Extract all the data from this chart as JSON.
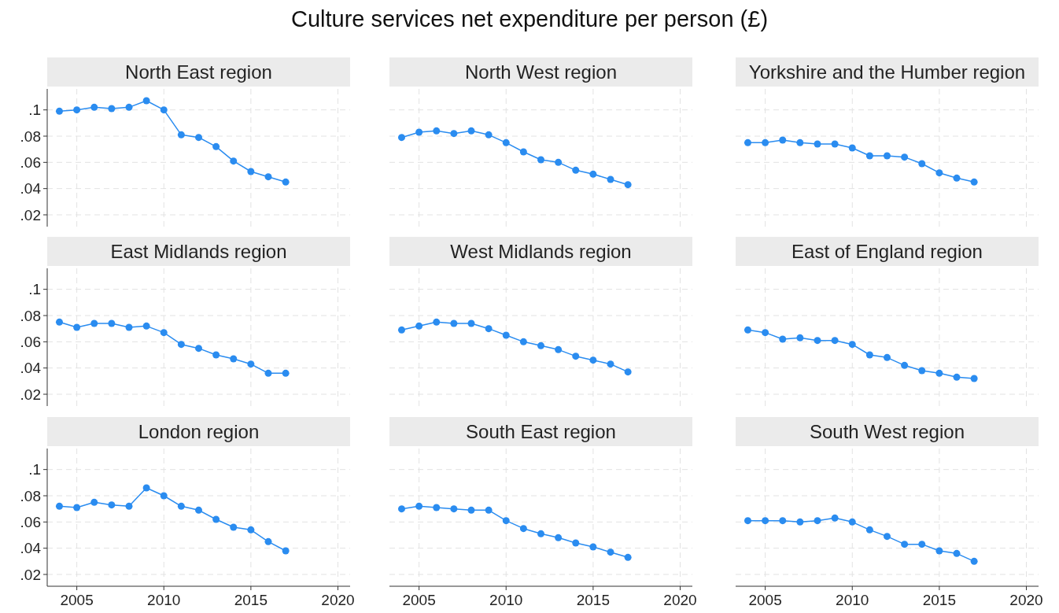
{
  "chart_data": [
    {
      "type": "line",
      "title": "North East region",
      "annotations": [
        "Culture services net expenditure per person (£)"
      ],
      "x": [
        2004,
        2005,
        2006,
        2007,
        2008,
        2009,
        2010,
        2011,
        2012,
        2013,
        2014,
        2015,
        2016,
        2017
      ],
      "values": [
        0.099,
        0.1,
        0.102,
        0.101,
        0.102,
        0.107,
        0.1,
        0.081,
        0.079,
        0.072,
        0.061,
        0.053,
        0.049,
        0.045
      ],
      "color": "#2a8cf0",
      "marker": "circle",
      "grid": true,
      "xlim": [
        2003.3,
        2020.7
      ],
      "ylim": [
        0.011,
        0.116
      ],
      "xticks": [
        {
          "value": 2005,
          "label": null
        },
        {
          "value": 2010,
          "label": null
        },
        {
          "value": 2015,
          "label": null
        },
        {
          "value": 2020,
          "label": null
        }
      ],
      "yticks": [
        {
          "value": 0.02,
          "label": ".02"
        },
        {
          "value": 0.04,
          "label": ".04"
        },
        {
          "value": 0.06,
          "label": ".06"
        },
        {
          "value": 0.08,
          "label": ".08"
        },
        {
          "value": 0.1,
          "label": ".1"
        }
      ],
      "tick_labels": "y"
    },
    {
      "type": "line",
      "title": "North West region",
      "x": [
        2004,
        2005,
        2006,
        2007,
        2008,
        2009,
        2010,
        2011,
        2012,
        2013,
        2014,
        2015,
        2016,
        2017
      ],
      "values": [
        0.079,
        0.083,
        0.084,
        0.082,
        0.084,
        0.081,
        0.075,
        0.068,
        0.062,
        0.06,
        0.054,
        0.051,
        0.047,
        0.043
      ],
      "color": "#2a8cf0",
      "marker": "circle",
      "grid": true,
      "xlim": [
        2003.3,
        2020.7
      ],
      "ylim": [
        0.011,
        0.116
      ],
      "xticks": [
        {
          "value": 2005,
          "label": null
        },
        {
          "value": 2010,
          "label": null
        },
        {
          "value": 2015,
          "label": null
        },
        {
          "value": 2020,
          "label": null
        }
      ],
      "yticks": [
        {
          "value": 0.02,
          "label": null
        },
        {
          "value": 0.04,
          "label": null
        },
        {
          "value": 0.06,
          "label": null
        },
        {
          "value": 0.08,
          "label": null
        },
        {
          "value": 0.1,
          "label": null
        }
      ],
      "tick_labels": false
    },
    {
      "type": "line",
      "title": "Yorkshire and the Humber region",
      "x": [
        2004,
        2005,
        2006,
        2007,
        2008,
        2009,
        2010,
        2011,
        2012,
        2013,
        2014,
        2015,
        2016,
        2017
      ],
      "values": [
        0.075,
        0.075,
        0.077,
        0.075,
        0.074,
        0.074,
        0.071,
        0.065,
        0.065,
        0.064,
        0.059,
        0.052,
        0.048,
        0.045
      ],
      "color": "#2a8cf0",
      "marker": "circle",
      "grid": true,
      "xlim": [
        2003.3,
        2020.7
      ],
      "ylim": [
        0.011,
        0.116
      ],
      "xticks": [
        {
          "value": 2005,
          "label": null
        },
        {
          "value": 2010,
          "label": null
        },
        {
          "value": 2015,
          "label": null
        },
        {
          "value": 2020,
          "label": null
        }
      ],
      "yticks": [
        {
          "value": 0.02,
          "label": null
        },
        {
          "value": 0.04,
          "label": null
        },
        {
          "value": 0.06,
          "label": null
        },
        {
          "value": 0.08,
          "label": null
        },
        {
          "value": 0.1,
          "label": null
        }
      ],
      "tick_labels": false
    },
    {
      "type": "line",
      "title": "East Midlands region",
      "x": [
        2004,
        2005,
        2006,
        2007,
        2008,
        2009,
        2010,
        2011,
        2012,
        2013,
        2014,
        2015,
        2016,
        2017
      ],
      "values": [
        0.075,
        0.071,
        0.074,
        0.074,
        0.071,
        0.072,
        0.067,
        0.058,
        0.055,
        0.05,
        0.047,
        0.043,
        0.036,
        0.036
      ],
      "color": "#2a8cf0",
      "marker": "circle",
      "grid": true,
      "xlim": [
        2003.3,
        2020.7
      ],
      "ylim": [
        0.011,
        0.116
      ],
      "xticks": [
        {
          "value": 2005,
          "label": null
        },
        {
          "value": 2010,
          "label": null
        },
        {
          "value": 2015,
          "label": null
        },
        {
          "value": 2020,
          "label": null
        }
      ],
      "yticks": [
        {
          "value": 0.02,
          "label": ".02"
        },
        {
          "value": 0.04,
          "label": ".04"
        },
        {
          "value": 0.06,
          "label": ".06"
        },
        {
          "value": 0.08,
          "label": ".08"
        },
        {
          "value": 0.1,
          "label": ".1"
        }
      ],
      "tick_labels": "y"
    },
    {
      "type": "line",
      "title": "West Midlands region",
      "x": [
        2004,
        2005,
        2006,
        2007,
        2008,
        2009,
        2010,
        2011,
        2012,
        2013,
        2014,
        2015,
        2016,
        2017
      ],
      "values": [
        0.069,
        0.072,
        0.075,
        0.074,
        0.074,
        0.07,
        0.065,
        0.06,
        0.057,
        0.054,
        0.049,
        0.046,
        0.043,
        0.037
      ],
      "color": "#2a8cf0",
      "marker": "circle",
      "grid": true,
      "xlim": [
        2003.3,
        2020.7
      ],
      "ylim": [
        0.011,
        0.116
      ],
      "xticks": [
        {
          "value": 2005,
          "label": null
        },
        {
          "value": 2010,
          "label": null
        },
        {
          "value": 2015,
          "label": null
        },
        {
          "value": 2020,
          "label": null
        }
      ],
      "yticks": [
        {
          "value": 0.02,
          "label": null
        },
        {
          "value": 0.04,
          "label": null
        },
        {
          "value": 0.06,
          "label": null
        },
        {
          "value": 0.08,
          "label": null
        },
        {
          "value": 0.1,
          "label": null
        }
      ],
      "tick_labels": false
    },
    {
      "type": "line",
      "title": "East of England region",
      "x": [
        2004,
        2005,
        2006,
        2007,
        2008,
        2009,
        2010,
        2011,
        2012,
        2013,
        2014,
        2015,
        2016,
        2017
      ],
      "values": [
        0.069,
        0.067,
        0.062,
        0.063,
        0.061,
        0.061,
        0.058,
        0.05,
        0.048,
        0.042,
        0.038,
        0.036,
        0.033,
        0.032
      ],
      "color": "#2a8cf0",
      "marker": "circle",
      "grid": true,
      "xlim": [
        2003.3,
        2020.7
      ],
      "ylim": [
        0.011,
        0.116
      ],
      "xticks": [
        {
          "value": 2005,
          "label": null
        },
        {
          "value": 2010,
          "label": null
        },
        {
          "value": 2015,
          "label": null
        },
        {
          "value": 2020,
          "label": null
        }
      ],
      "yticks": [
        {
          "value": 0.02,
          "label": null
        },
        {
          "value": 0.04,
          "label": null
        },
        {
          "value": 0.06,
          "label": null
        },
        {
          "value": 0.08,
          "label": null
        },
        {
          "value": 0.1,
          "label": null
        }
      ],
      "tick_labels": false
    },
    {
      "type": "line",
      "title": "London region",
      "x": [
        2004,
        2005,
        2006,
        2007,
        2008,
        2009,
        2010,
        2011,
        2012,
        2013,
        2014,
        2015,
        2016,
        2017
      ],
      "values": [
        0.072,
        0.071,
        0.075,
        0.073,
        0.072,
        0.086,
        0.08,
        0.072,
        0.069,
        0.062,
        0.056,
        0.054,
        0.045,
        0.038
      ],
      "color": "#2a8cf0",
      "marker": "circle",
      "grid": true,
      "xlim": [
        2003.3,
        2020.7
      ],
      "ylim": [
        0.011,
        0.116
      ],
      "xticks": [
        2005,
        2010,
        2015,
        2020
      ],
      "yticks": [
        {
          "value": 0.02,
          "label": ".02"
        },
        {
          "value": 0.04,
          "label": ".04"
        },
        {
          "value": 0.06,
          "label": ".06"
        },
        {
          "value": 0.08,
          "label": ".08"
        },
        {
          "value": 0.1,
          "label": ".1"
        }
      ]
    },
    {
      "type": "line",
      "title": "South East region",
      "x": [
        2004,
        2005,
        2006,
        2007,
        2008,
        2009,
        2010,
        2011,
        2012,
        2013,
        2014,
        2015,
        2016,
        2017
      ],
      "values": [
        0.07,
        0.072,
        0.071,
        0.07,
        0.069,
        0.069,
        0.061,
        0.055,
        0.051,
        0.048,
        0.044,
        0.041,
        0.037,
        0.033
      ],
      "color": "#2a8cf0",
      "marker": "circle",
      "grid": true,
      "xlim": [
        2003.3,
        2020.7
      ],
      "ylim": [
        0.011,
        0.116
      ],
      "xticks": [
        2005,
        2010,
        2015,
        2020
      ],
      "yticks": [
        {
          "value": 0.02,
          "label": null
        },
        {
          "value": 0.04,
          "label": null
        },
        {
          "value": 0.06,
          "label": null
        },
        {
          "value": 0.08,
          "label": null
        },
        {
          "value": 0.1,
          "label": null
        }
      ],
      "tick_labels": "x"
    },
    {
      "type": "line",
      "title": "South West region",
      "x": [
        2004,
        2005,
        2006,
        2007,
        2008,
        2009,
        2010,
        2011,
        2012,
        2013,
        2014,
        2015,
        2016,
        2017
      ],
      "values": [
        0.061,
        0.061,
        0.061,
        0.06,
        0.061,
        0.063,
        0.06,
        0.054,
        0.049,
        0.043,
        0.043,
        0.038,
        0.036,
        0.03
      ],
      "color": "#2a8cf0",
      "marker": "circle",
      "grid": true,
      "xlim": [
        2003.3,
        2020.7
      ],
      "ylim": [
        0.011,
        0.116
      ],
      "xticks": [
        2005,
        2010,
        2015,
        2020
      ],
      "yticks": [
        {
          "value": 0.02,
          "label": null
        },
        {
          "value": 0.04,
          "label": null
        },
        {
          "value": 0.06,
          "label": null
        },
        {
          "value": 0.08,
          "label": null
        },
        {
          "value": 0.1,
          "label": null
        }
      ],
      "tick_labels": "x"
    }
  ]
}
